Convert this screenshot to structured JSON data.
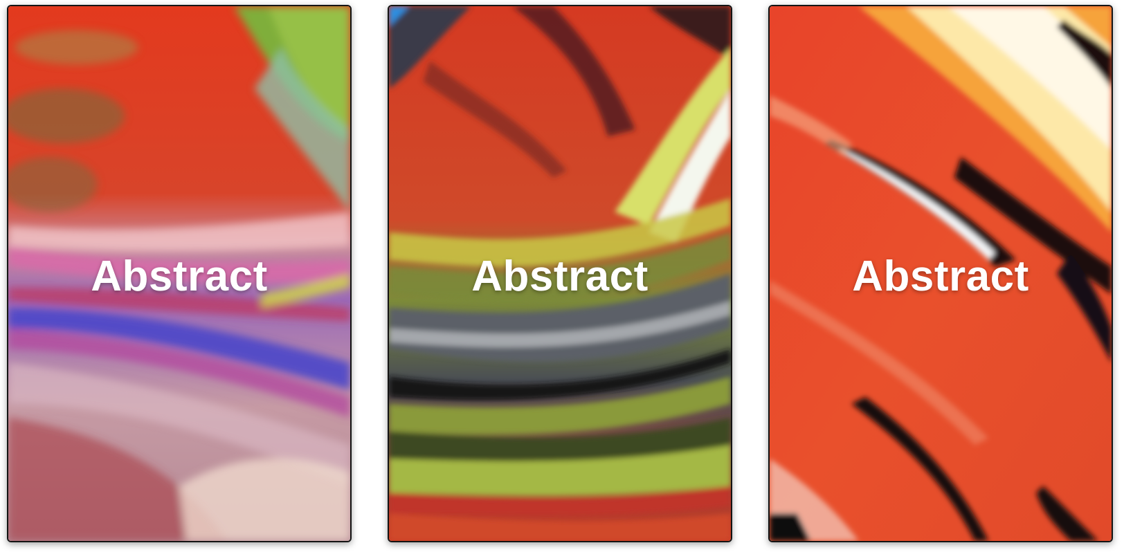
{
  "gallery": {
    "cards": [
      {
        "label": "Abstract",
        "image": "abstract-fluid-painting-red-green-purple"
      },
      {
        "label": "Abstract",
        "image": "abstract-fluid-painting-red-yellow-black"
      },
      {
        "label": "Abstract",
        "image": "abstract-fluid-painting-orange-black"
      }
    ]
  }
}
